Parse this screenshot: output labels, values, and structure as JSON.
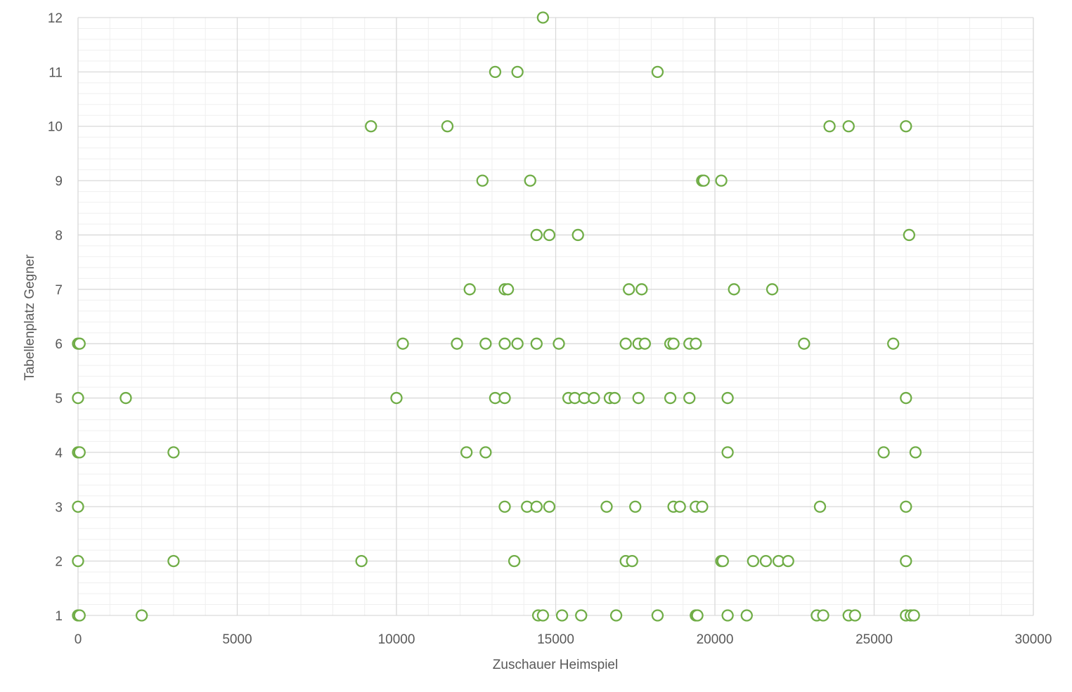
{
  "chart_data": {
    "type": "scatter",
    "title": "",
    "xlabel": "Zuschauer Heimspiel",
    "ylabel": "Tabellenplatz Gegner",
    "xlim": [
      0,
      30000
    ],
    "ylim": [
      1,
      12
    ],
    "xticks": [
      0,
      5000,
      10000,
      15000,
      20000,
      25000,
      30000
    ],
    "yticks": [
      1,
      2,
      3,
      4,
      5,
      6,
      7,
      8,
      9,
      10,
      11,
      12
    ],
    "major_grid": true,
    "minor_grid": true,
    "legend": "none",
    "marker": "hollow-circle",
    "colors": {
      "marker": "#70AD47",
      "major_grid": "#D9D9D9",
      "minor_grid": "#EFEFEF",
      "text": "#595959"
    },
    "series": [
      {
        "points": [
          {
            "x": 14600,
            "y": 12
          },
          {
            "x": 13100,
            "y": 11
          },
          {
            "x": 13800,
            "y": 11
          },
          {
            "x": 18200,
            "y": 11
          },
          {
            "x": 9200,
            "y": 10
          },
          {
            "x": 11600,
            "y": 10
          },
          {
            "x": 23600,
            "y": 10
          },
          {
            "x": 24200,
            "y": 10
          },
          {
            "x": 26000,
            "y": 10
          },
          {
            "x": 12700,
            "y": 9
          },
          {
            "x": 14200,
            "y": 9
          },
          {
            "x": 19600,
            "y": 9
          },
          {
            "x": 19650,
            "y": 9
          },
          {
            "x": 20200,
            "y": 9
          },
          {
            "x": 14400,
            "y": 8
          },
          {
            "x": 14800,
            "y": 8
          },
          {
            "x": 15700,
            "y": 8
          },
          {
            "x": 26100,
            "y": 8
          },
          {
            "x": 12300,
            "y": 7
          },
          {
            "x": 13400,
            "y": 7
          },
          {
            "x": 13500,
            "y": 7
          },
          {
            "x": 17300,
            "y": 7
          },
          {
            "x": 17700,
            "y": 7
          },
          {
            "x": 20600,
            "y": 7
          },
          {
            "x": 21800,
            "y": 7
          },
          {
            "x": 0,
            "y": 6
          },
          {
            "x": 50,
            "y": 6
          },
          {
            "x": 10200,
            "y": 6
          },
          {
            "x": 11900,
            "y": 6
          },
          {
            "x": 12800,
            "y": 6
          },
          {
            "x": 13400,
            "y": 6
          },
          {
            "x": 13800,
            "y": 6
          },
          {
            "x": 14400,
            "y": 6
          },
          {
            "x": 15100,
            "y": 6
          },
          {
            "x": 17200,
            "y": 6
          },
          {
            "x": 17600,
            "y": 6
          },
          {
            "x": 17800,
            "y": 6
          },
          {
            "x": 18600,
            "y": 6
          },
          {
            "x": 18700,
            "y": 6
          },
          {
            "x": 19200,
            "y": 6
          },
          {
            "x": 19400,
            "y": 6
          },
          {
            "x": 22800,
            "y": 6
          },
          {
            "x": 25600,
            "y": 6
          },
          {
            "x": 0,
            "y": 5
          },
          {
            "x": 1500,
            "y": 5
          },
          {
            "x": 10000,
            "y": 5
          },
          {
            "x": 13100,
            "y": 5
          },
          {
            "x": 13400,
            "y": 5
          },
          {
            "x": 15400,
            "y": 5
          },
          {
            "x": 15600,
            "y": 5
          },
          {
            "x": 15900,
            "y": 5
          },
          {
            "x": 16200,
            "y": 5
          },
          {
            "x": 16700,
            "y": 5
          },
          {
            "x": 16850,
            "y": 5
          },
          {
            "x": 17600,
            "y": 5
          },
          {
            "x": 18600,
            "y": 5
          },
          {
            "x": 19200,
            "y": 5
          },
          {
            "x": 20400,
            "y": 5
          },
          {
            "x": 26000,
            "y": 5
          },
          {
            "x": 0,
            "y": 4
          },
          {
            "x": 50,
            "y": 4
          },
          {
            "x": 3000,
            "y": 4
          },
          {
            "x": 12200,
            "y": 4
          },
          {
            "x": 12800,
            "y": 4
          },
          {
            "x": 20400,
            "y": 4
          },
          {
            "x": 25300,
            "y": 4
          },
          {
            "x": 26300,
            "y": 4
          },
          {
            "x": 0,
            "y": 3
          },
          {
            "x": 13400,
            "y": 3
          },
          {
            "x": 14100,
            "y": 3
          },
          {
            "x": 14400,
            "y": 3
          },
          {
            "x": 14800,
            "y": 3
          },
          {
            "x": 16600,
            "y": 3
          },
          {
            "x": 17500,
            "y": 3
          },
          {
            "x": 18700,
            "y": 3
          },
          {
            "x": 18900,
            "y": 3
          },
          {
            "x": 19400,
            "y": 3
          },
          {
            "x": 19600,
            "y": 3
          },
          {
            "x": 23300,
            "y": 3
          },
          {
            "x": 26000,
            "y": 3
          },
          {
            "x": 0,
            "y": 2
          },
          {
            "x": 3000,
            "y": 2
          },
          {
            "x": 8900,
            "y": 2
          },
          {
            "x": 13700,
            "y": 2
          },
          {
            "x": 17200,
            "y": 2
          },
          {
            "x": 17400,
            "y": 2
          },
          {
            "x": 20200,
            "y": 2
          },
          {
            "x": 20250,
            "y": 2
          },
          {
            "x": 21200,
            "y": 2
          },
          {
            "x": 21600,
            "y": 2
          },
          {
            "x": 22000,
            "y": 2
          },
          {
            "x": 22300,
            "y": 2
          },
          {
            "x": 26000,
            "y": 2
          },
          {
            "x": 0,
            "y": 1
          },
          {
            "x": 50,
            "y": 1
          },
          {
            "x": 2000,
            "y": 1
          },
          {
            "x": 14450,
            "y": 1
          },
          {
            "x": 14600,
            "y": 1
          },
          {
            "x": 15200,
            "y": 1
          },
          {
            "x": 15800,
            "y": 1
          },
          {
            "x": 16900,
            "y": 1
          },
          {
            "x": 18200,
            "y": 1
          },
          {
            "x": 19400,
            "y": 1
          },
          {
            "x": 19450,
            "y": 1
          },
          {
            "x": 20400,
            "y": 1
          },
          {
            "x": 21000,
            "y": 1
          },
          {
            "x": 23200,
            "y": 1
          },
          {
            "x": 23400,
            "y": 1
          },
          {
            "x": 24200,
            "y": 1
          },
          {
            "x": 24400,
            "y": 1
          },
          {
            "x": 26000,
            "y": 1
          },
          {
            "x": 26150,
            "y": 1
          },
          {
            "x": 26250,
            "y": 1
          }
        ]
      }
    ]
  }
}
